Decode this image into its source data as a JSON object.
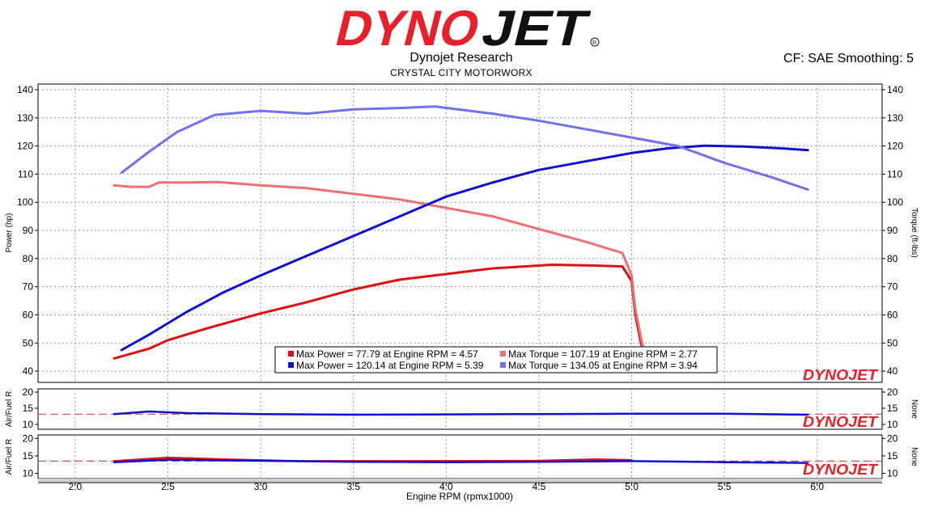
{
  "header": {
    "logo_text": "DYNOJET",
    "title": "Dynojet Research",
    "subtitle": "CRYSTAL CITY MOTORWORX",
    "right_label": "CF: SAE Smoothing: 5"
  },
  "colors": {
    "run1_power": "#e01010",
    "run1_torque": "#f07070",
    "run2_power": "#1010d0",
    "run2_torque": "#7070f0",
    "afr_ref": "#d03030"
  },
  "chart_data": [
    {
      "type": "line",
      "title": "",
      "xlabel": "Engine RPM (rpmx1000)",
      "ylabel": "Power (hp)",
      "y2label": "Torque (ft-lbs)",
      "xlim": [
        1.8,
        6.35
      ],
      "ylim": [
        36,
        142
      ],
      "xticks": [
        "2.0",
        "2.5",
        "3.0",
        "3.5",
        "4.0",
        "4.5",
        "5.0",
        "5.5",
        "6.0"
      ],
      "yticks": [
        "40",
        "50",
        "60",
        "70",
        "80",
        "90",
        "100",
        "110",
        "120",
        "130",
        "140"
      ],
      "grid": true,
      "legend_position": "bottom-center",
      "legend": [
        "Max Power = 77.79 at Engine RPM = 4.57",
        "Max Torque = 107.19 at Engine RPM = 2.77",
        "Max Power = 120.14 at Engine RPM = 5.39",
        "Max Torque = 134.05 at Engine RPM = 3.94"
      ],
      "series": [
        {
          "key": "run1_power",
          "x": [
            2.21,
            2.4,
            2.5,
            2.7,
            3.0,
            3.25,
            3.5,
            3.75,
            4.0,
            4.25,
            4.57,
            4.8,
            4.95,
            5.0,
            5.02,
            5.05,
            5.07
          ],
          "y": [
            44.5,
            48,
            51,
            55,
            60.5,
            64.5,
            69,
            72.5,
            74.5,
            76.5,
            77.8,
            77.5,
            77.2,
            72,
            60,
            50,
            45.5
          ]
        },
        {
          "key": "run1_torque",
          "x": [
            2.21,
            2.3,
            2.4,
            2.45,
            2.6,
            2.77,
            3.0,
            3.25,
            3.5,
            3.75,
            4.0,
            4.25,
            4.5,
            4.75,
            4.95,
            5.0,
            5.02,
            5.05,
            5.07
          ],
          "y": [
            106,
            105.5,
            105.5,
            107,
            107,
            107.2,
            106,
            105,
            103,
            101,
            98,
            95,
            90.5,
            86,
            82,
            74,
            62,
            52,
            46
          ]
        },
        {
          "key": "run2_power",
          "x": [
            2.25,
            2.4,
            2.6,
            2.8,
            3.0,
            3.25,
            3.5,
            3.75,
            4.0,
            4.25,
            4.5,
            4.75,
            5.0,
            5.2,
            5.39,
            5.6,
            5.8,
            5.95
          ],
          "y": [
            47.5,
            53,
            61,
            68,
            74,
            81,
            88,
            95,
            102,
            107,
            111.5,
            114.5,
            117.5,
            119.2,
            120.1,
            119.8,
            119.2,
            118.5
          ]
        },
        {
          "key": "run2_torque",
          "x": [
            2.25,
            2.4,
            2.55,
            2.75,
            3.0,
            3.25,
            3.5,
            3.75,
            3.94,
            4.25,
            4.5,
            4.75,
            5.0,
            5.25,
            5.5,
            5.75,
            5.95
          ],
          "y": [
            110.5,
            118,
            125,
            131,
            132.5,
            131.5,
            133,
            133.5,
            134.05,
            131.5,
            129,
            126,
            123,
            120,
            114,
            109,
            104.5
          ]
        }
      ]
    },
    {
      "type": "line",
      "title": "",
      "ylabel": "Air/Fuel R",
      "y2label": "None",
      "ylim": [
        8.5,
        21
      ],
      "yticks": [
        "10",
        "15",
        "20"
      ],
      "reference_value": 13.2,
      "series": [
        {
          "key": "run2_power",
          "x": [
            2.21,
            2.4,
            2.6,
            3.0,
            3.5,
            4.0,
            4.5,
            5.0,
            5.5,
            5.95
          ],
          "y": [
            13.2,
            14,
            13.5,
            13.2,
            13.0,
            13.1,
            13.2,
            13.3,
            13.3,
            13.0
          ]
        }
      ]
    },
    {
      "type": "line",
      "title": "",
      "ylabel": "Air/Fuel R",
      "y2label": "None",
      "ylim": [
        8.5,
        21
      ],
      "yticks": [
        "10",
        "15",
        "20"
      ],
      "reference_value": 13.5,
      "series": [
        {
          "key": "run1_power",
          "x": [
            2.21,
            2.5,
            2.8,
            3.2,
            3.6,
            4.0,
            4.5,
            4.8,
            5.0
          ],
          "y": [
            13.5,
            14.5,
            14,
            13.5,
            13.5,
            13.5,
            13.6,
            14,
            13.8
          ]
        },
        {
          "key": "run2_power",
          "x": [
            2.21,
            2.5,
            3.0,
            3.5,
            4.0,
            4.5,
            5.0,
            5.5,
            5.95
          ],
          "y": [
            13.2,
            13.9,
            13.6,
            13.3,
            13.2,
            13.3,
            13.5,
            13.2,
            13.0
          ]
        }
      ]
    }
  ]
}
